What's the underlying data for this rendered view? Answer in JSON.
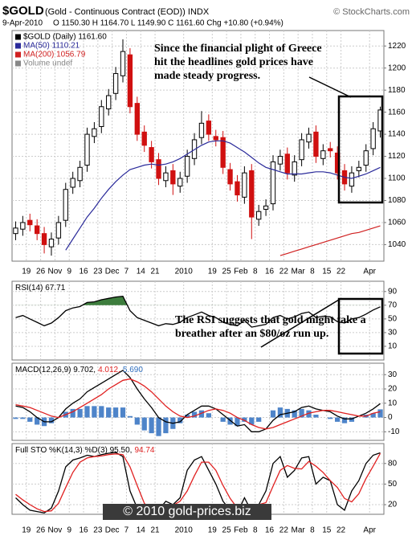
{
  "header": {
    "symbol": "$GOLD",
    "name": "(Gold - Continuous Contract (EOD)) INDX",
    "source": "© StockCharts.com",
    "date": "9-Apr-2010",
    "quote": "O 1150.30 H 1164.70 L 1149.90 C 1161.60 Chg +10.80 (+0.94%)"
  },
  "chart_data": [
    {
      "type": "candlestick",
      "name": "$GOLD (Daily) 1161.60",
      "volume_label": "Volume undef",
      "annotation": "Since the financial plight of Greece hit the headlines gold prices have made steady progress.",
      "up_color": "#000000",
      "down_color": "#d01010",
      "categories": [
        null,
        null,
        "19",
        null,
        "26",
        null,
        "Nov",
        null,
        "9",
        null,
        "16",
        null,
        "23",
        null,
        "Dec",
        null,
        "7",
        null,
        "14",
        null,
        "21",
        null,
        null,
        null,
        "2010",
        null,
        null,
        null,
        "19",
        null,
        "25",
        null,
        "Feb",
        null,
        "8",
        null,
        "16",
        null,
        "22",
        null,
        "Mar",
        null,
        "8",
        null,
        "15",
        null,
        "22",
        null,
        null,
        null,
        "Apr",
        null
      ],
      "open": [
        1050,
        1054,
        1062,
        1057,
        1050,
        1038,
        1046,
        1062,
        1092,
        1098,
        1112,
        1138,
        1147,
        1163,
        1177,
        1193,
        1212,
        1168,
        1142,
        1128,
        1117,
        1098,
        1107,
        1093,
        1102,
        1118,
        1137,
        1152,
        1138,
        1137,
        1108,
        1097,
        1083,
        1107,
        1063,
        1072,
        1077,
        1113,
        1122,
        1103,
        1117,
        1133,
        1142,
        1118,
        1127,
        1123,
        1107,
        1093,
        1107,
        1112,
        1127,
        1143
      ],
      "high": [
        1061,
        1066,
        1068,
        1063,
        1056,
        1051,
        1066,
        1096,
        1106,
        1116,
        1146,
        1151,
        1171,
        1181,
        1201,
        1226,
        1218,
        1174,
        1148,
        1134,
        1123,
        1111,
        1113,
        1106,
        1126,
        1141,
        1161,
        1158,
        1144,
        1143,
        1114,
        1103,
        1111,
        1113,
        1076,
        1081,
        1121,
        1126,
        1128,
        1121,
        1141,
        1146,
        1148,
        1131,
        1133,
        1129,
        1113,
        1111,
        1116,
        1131,
        1151,
        1165
      ],
      "low": [
        1044,
        1048,
        1052,
        1044,
        1032,
        1030,
        1040,
        1056,
        1086,
        1092,
        1106,
        1132,
        1141,
        1157,
        1171,
        1187,
        1159,
        1134,
        1124,
        1109,
        1094,
        1092,
        1085,
        1087,
        1096,
        1112,
        1131,
        1134,
        1129,
        1104,
        1089,
        1079,
        1077,
        1045,
        1057,
        1066,
        1071,
        1107,
        1099,
        1097,
        1111,
        1127,
        1114,
        1112,
        1119,
        1099,
        1089,
        1087,
        1101,
        1106,
        1121,
        1137
      ],
      "close": [
        1055,
        1060,
        1058,
        1050,
        1040,
        1045,
        1060,
        1090,
        1100,
        1110,
        1140,
        1145,
        1165,
        1175,
        1195,
        1215,
        1165,
        1140,
        1130,
        1115,
        1100,
        1105,
        1095,
        1100,
        1120,
        1135,
        1150,
        1140,
        1135,
        1110,
        1095,
        1085,
        1105,
        1065,
        1070,
        1075,
        1115,
        1120,
        1105,
        1115,
        1135,
        1140,
        1120,
        1125,
        1125,
        1105,
        1095,
        1105,
        1110,
        1125,
        1145,
        1162
      ],
      "series": [
        {
          "name": "MA(50) 1110.21",
          "color": "#2a2a9a",
          "values": [
            null,
            null,
            null,
            null,
            null,
            null,
            null,
            1035,
            1045,
            1055,
            1065,
            1073,
            1082,
            1090,
            1097,
            1103,
            1108,
            1110,
            1112,
            1113,
            1112,
            1113,
            1115,
            1118,
            1122,
            1126,
            1130,
            1133,
            1134,
            1134,
            1132,
            1128,
            1124,
            1119,
            1114,
            1110,
            1108,
            1106,
            1104,
            1104,
            1104,
            1105,
            1106,
            1106,
            1105,
            1103,
            1101,
            1100,
            1102,
            1104,
            1107,
            1110
          ]
        },
        {
          "name": "MA(200) 1056.79",
          "color": "#d02020",
          "values": [
            null,
            null,
            null,
            null,
            null,
            null,
            null,
            null,
            null,
            null,
            null,
            null,
            null,
            null,
            null,
            null,
            null,
            null,
            null,
            null,
            null,
            null,
            null,
            null,
            null,
            null,
            null,
            null,
            null,
            null,
            null,
            null,
            null,
            null,
            null,
            null,
            null,
            1030,
            1032,
            1034,
            1036,
            1038,
            1040,
            1042,
            1044,
            1046,
            1048,
            1050,
            1051,
            1053,
            1055,
            1057
          ]
        }
      ],
      "ylim": [
        1025,
        1234
      ],
      "yticks": [
        1040,
        1060,
        1080,
        1100,
        1120,
        1140,
        1160,
        1180,
        1200,
        1220
      ],
      "grid": true
    },
    {
      "type": "line",
      "annotation": "The RSI suggests that gold might take a breather after an $80/oz run up.",
      "overbought": 70,
      "overbought_color": "#3d7d3d",
      "series": [
        {
          "name": "RSI(14) 67.71",
          "color": "#000000",
          "values": [
            52,
            55,
            50,
            45,
            40,
            44,
            52,
            62,
            66,
            68,
            74,
            75,
            78,
            80,
            82,
            83,
            62,
            52,
            48,
            44,
            40,
            43,
            42,
            45,
            52,
            56,
            60,
            55,
            52,
            45,
            42,
            40,
            48,
            38,
            40,
            42,
            52,
            55,
            50,
            53,
            58,
            60,
            52,
            54,
            53,
            46,
            44,
            50,
            52,
            57,
            63,
            67.71
          ]
        }
      ],
      "ylim": [
        -10,
        105
      ],
      "yticks": [
        10,
        30,
        50,
        70,
        90
      ],
      "grid": true
    },
    {
      "type": "line",
      "series": [
        {
          "name": "MACD(12,26,9) 9.702,",
          "color": "#000000",
          "values": [
            8,
            7,
            4,
            0,
            -3,
            -3,
            0,
            6,
            10,
            13,
            18,
            21,
            24,
            27,
            30,
            33,
            28,
            20,
            13,
            7,
            0,
            -3,
            -4,
            -3,
            2,
            5,
            8,
            8,
            6,
            2,
            -2,
            -6,
            -5,
            -10,
            -10,
            -8,
            -2,
            2,
            3,
            4,
            7,
            8,
            6,
            5,
            4,
            1,
            -1,
            -1,
            1,
            3,
            6,
            9.702
          ]
        },
        {
          "name": "4.012,",
          "color": "#e02020",
          "values": [
            9,
            8,
            7,
            5,
            3,
            1,
            0,
            2,
            4,
            7,
            10,
            13,
            16,
            20,
            23,
            26,
            27,
            25,
            22,
            18,
            13,
            8,
            4,
            1,
            0,
            1,
            3,
            5,
            6,
            5,
            3,
            0,
            -2,
            -5,
            -7,
            -8,
            -7,
            -5,
            -3,
            -1,
            1,
            3,
            4,
            5,
            5,
            4,
            3,
            2,
            1,
            1,
            3,
            4.012
          ]
        },
        {
          "name": "5.690",
          "color": "#2f6fbf",
          "kind": "bar",
          "values": [
            -1,
            -1,
            -3,
            -5,
            -6,
            -4,
            0,
            4,
            6,
            6,
            8,
            8,
            8,
            7,
            7,
            7,
            1,
            -5,
            -9,
            -11,
            -13,
            -11,
            -8,
            -4,
            2,
            4,
            5,
            3,
            0,
            -3,
            -5,
            -6,
            -3,
            -5,
            -3,
            0,
            5,
            7,
            6,
            5,
            6,
            5,
            2,
            0,
            -1,
            -3,
            -4,
            -3,
            0,
            2,
            3,
            5.69
          ]
        }
      ],
      "ylim": [
        -16,
        38
      ],
      "yticks": [
        -10,
        0,
        10,
        20,
        30
      ],
      "grid": true
    },
    {
      "type": "line",
      "watermark": "© 2010 gold-prices.biz",
      "categories": [
        null,
        null,
        "19",
        null,
        "26",
        null,
        "Nov",
        null,
        "9",
        null,
        "16",
        null,
        "23",
        null,
        "Dec",
        null,
        "7",
        null,
        "14",
        null,
        "21",
        null,
        null,
        null,
        "2010",
        null,
        null,
        null,
        "19",
        null,
        "25",
        null,
        "Feb",
        null,
        "8",
        null,
        "16",
        null,
        "22",
        null,
        "Mar",
        null,
        "8",
        null,
        "15",
        null,
        "22",
        null,
        null,
        null,
        "Apr",
        null
      ],
      "series": [
        {
          "name": "Full STO %K(14,3) %D(3) 95.50,",
          "color": "#000000",
          "values": [
            30,
            20,
            12,
            10,
            8,
            15,
            40,
            75,
            85,
            88,
            92,
            90,
            93,
            95,
            96,
            90,
            40,
            15,
            10,
            8,
            12,
            25,
            20,
            30,
            70,
            85,
            90,
            70,
            50,
            25,
            12,
            8,
            30,
            10,
            20,
            40,
            80,
            90,
            60,
            70,
            88,
            90,
            50,
            60,
            55,
            20,
            12,
            40,
            55,
            80,
            92,
            95.5
          ]
        },
        {
          "name": "94.74",
          "color": "#e02020",
          "values": [
            35,
            27,
            20,
            14,
            10,
            11,
            22,
            45,
            67,
            82,
            88,
            90,
            91,
            93,
            94,
            93,
            75,
            48,
            22,
            11,
            10,
            15,
            19,
            25,
            40,
            62,
            82,
            82,
            70,
            48,
            29,
            15,
            17,
            16,
            20,
            23,
            47,
            70,
            77,
            73,
            72,
            83,
            76,
            67,
            55,
            45,
            29,
            24,
            36,
            58,
            76,
            94.74
          ]
        }
      ],
      "ylim": [
        6,
        109
      ],
      "yticks": [
        20,
        50,
        80
      ],
      "grid": true
    }
  ]
}
